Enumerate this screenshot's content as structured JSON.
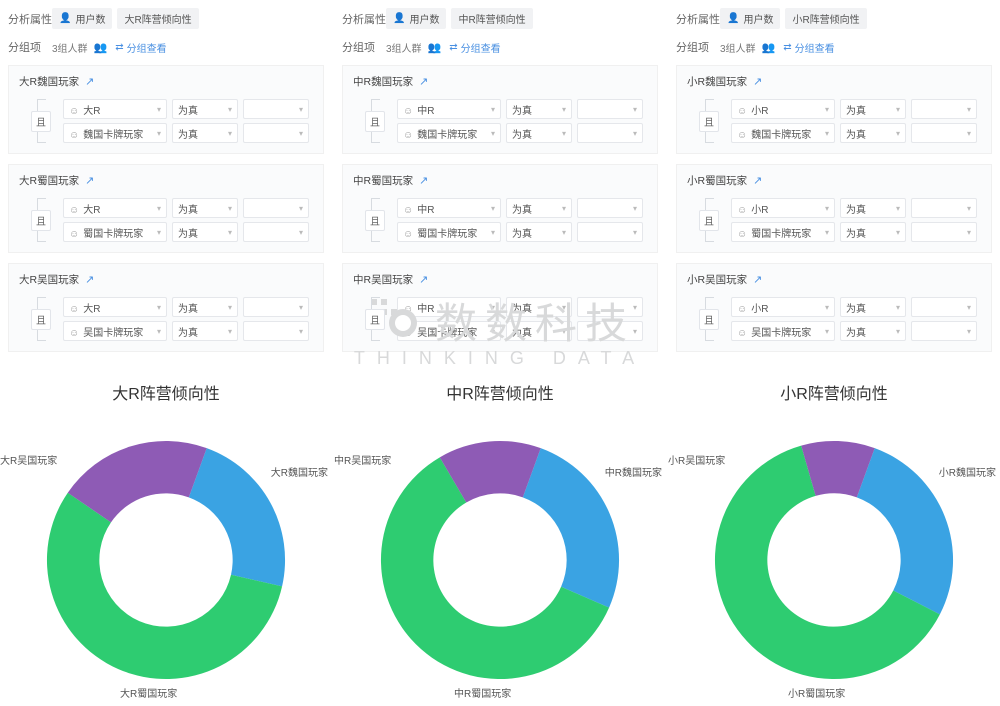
{
  "labels": {
    "analysis_attr": "分析属性",
    "split": "分组项",
    "user_count": "用户数",
    "groups_count": "3组人群",
    "view_groups": "分组查看",
    "and": "且",
    "is_true": "为真"
  },
  "colors": {
    "green": "#2ecc71",
    "blue": "#3aa3e3",
    "purple": "#8e5bb5",
    "bg": "#ffffff"
  },
  "panels": [
    {
      "attr_tag": "大R阵营倾向性",
      "chart_title": "大R阵营倾向性",
      "groups": [
        {
          "title": "大R魏国玩家",
          "conds": [
            "大R",
            "魏国卡牌玩家"
          ]
        },
        {
          "title": "大R蜀国玩家",
          "conds": [
            "大R",
            "蜀国卡牌玩家"
          ]
        },
        {
          "title": "大R吴国玩家",
          "conds": [
            "大R",
            "吴国卡牌玩家"
          ]
        }
      ],
      "donut": {
        "segments": [
          {
            "label": "大R魏国玩家",
            "value": 23,
            "color": "#3aa3e3",
            "pos": "NE"
          },
          {
            "label": "大R蜀国玩家",
            "value": 56,
            "color": "#2ecc71",
            "pos": "S"
          },
          {
            "label": "大R吴国玩家",
            "value": 21,
            "color": "#8e5bb5",
            "pos": "NW"
          }
        ],
        "inner_ratio": 0.56,
        "start_angle_deg": 20
      }
    },
    {
      "attr_tag": "中R阵营倾向性",
      "chart_title": "中R阵营倾向性",
      "groups": [
        {
          "title": "中R魏国玩家",
          "conds": [
            "中R",
            "魏国卡牌玩家"
          ]
        },
        {
          "title": "中R蜀国玩家",
          "conds": [
            "中R",
            "蜀国卡牌玩家"
          ]
        },
        {
          "title": "中R吴国玩家",
          "conds": [
            "中R",
            "吴国卡牌玩家"
          ]
        }
      ],
      "donut": {
        "segments": [
          {
            "label": "中R魏国玩家",
            "value": 26,
            "color": "#3aa3e3",
            "pos": "NE"
          },
          {
            "label": "中R蜀国玩家",
            "value": 60,
            "color": "#2ecc71",
            "pos": "S"
          },
          {
            "label": "中R吴国玩家",
            "value": 14,
            "color": "#8e5bb5",
            "pos": "NW"
          }
        ],
        "inner_ratio": 0.56,
        "start_angle_deg": 20
      }
    },
    {
      "attr_tag": "小R阵营倾向性",
      "chart_title": "小R阵营倾向性",
      "groups": [
        {
          "title": "小R魏国玩家",
          "conds": [
            "小R",
            "魏国卡牌玩家"
          ]
        },
        {
          "title": "小R蜀国玩家",
          "conds": [
            "小R",
            "蜀国卡牌玩家"
          ]
        },
        {
          "title": "小R吴国玩家",
          "conds": [
            "小R",
            "吴国卡牌玩家"
          ]
        }
      ],
      "donut": {
        "segments": [
          {
            "label": "小R魏国玩家",
            "value": 27,
            "color": "#3aa3e3",
            "pos": "NE"
          },
          {
            "label": "小R蜀国玩家",
            "value": 63,
            "color": "#2ecc71",
            "pos": "S"
          },
          {
            "label": "小R吴国玩家",
            "value": 10,
            "color": "#8e5bb5",
            "pos": "NW"
          }
        ],
        "inner_ratio": 0.56,
        "start_angle_deg": 20
      }
    }
  ],
  "watermark": {
    "main": "数数科技",
    "sub": "THINKING DATA"
  }
}
